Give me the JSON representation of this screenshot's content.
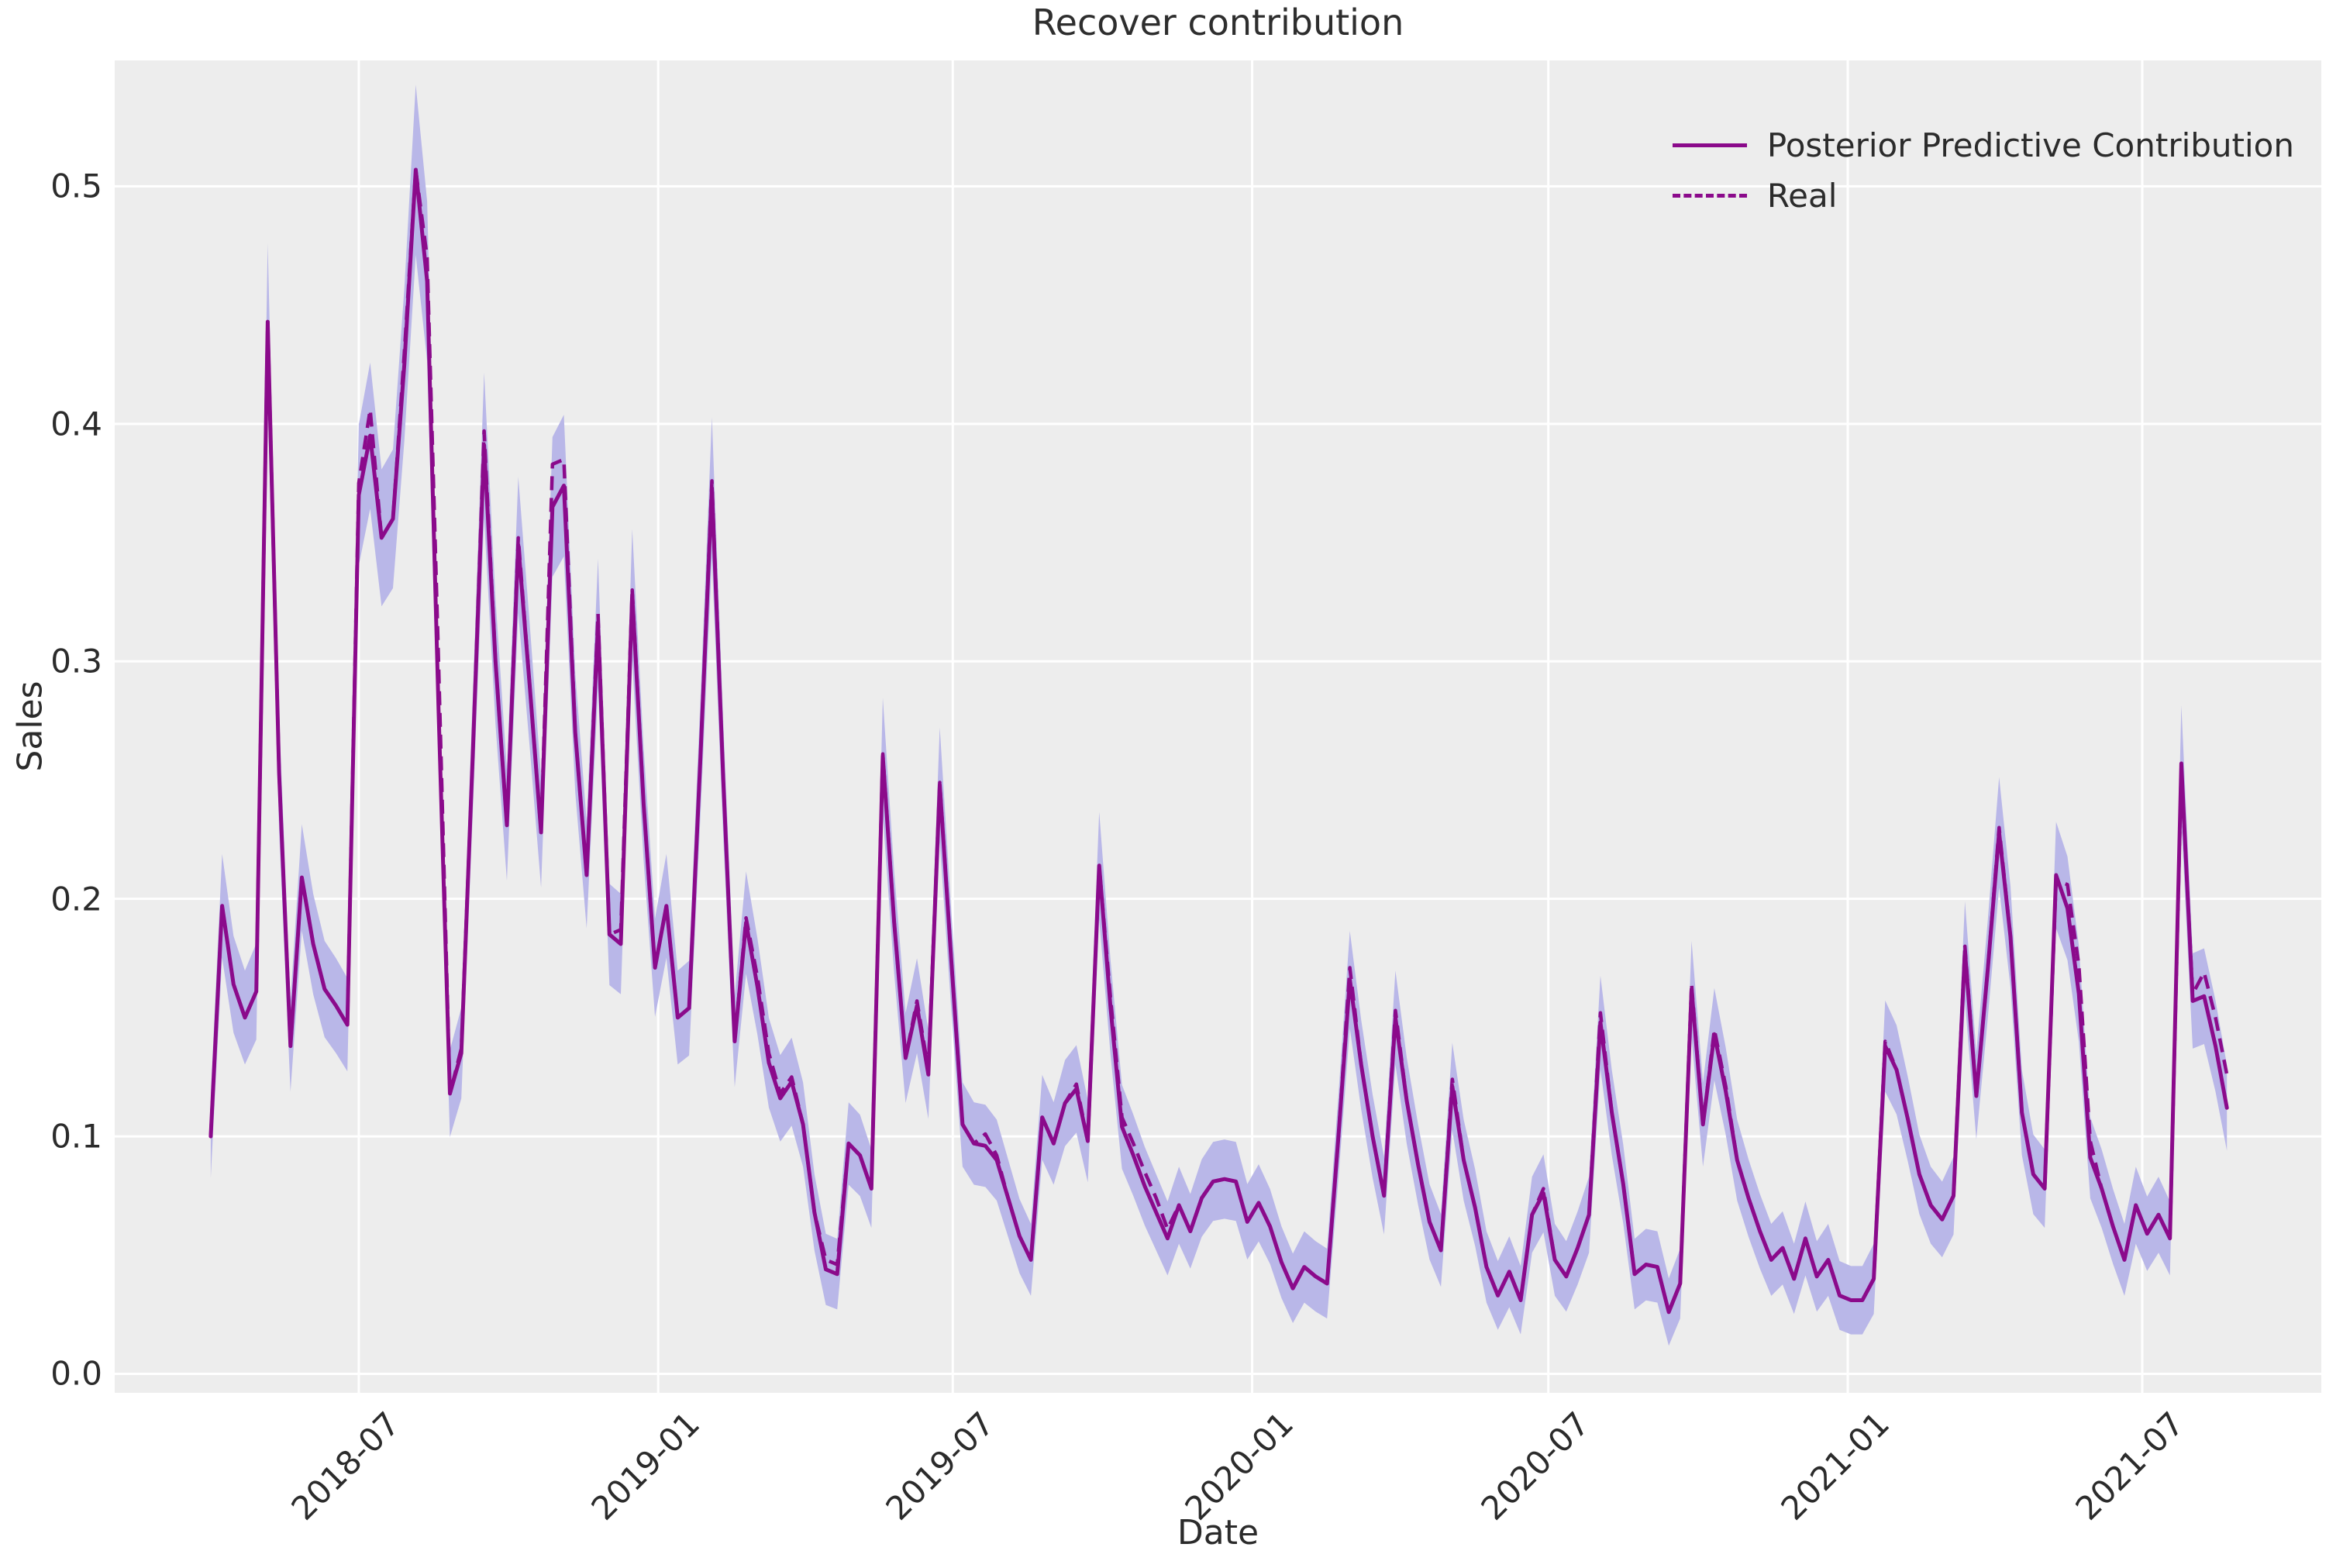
{
  "title": "Recover contribution",
  "axes": {
    "xlabel": "Date",
    "ylabel": "Sales"
  },
  "y_ticks": [
    {
      "label": "0.0",
      "value": 0.0
    },
    {
      "label": "0.1",
      "value": 0.1
    },
    {
      "label": "0.2",
      "value": 0.2
    },
    {
      "label": "0.3",
      "value": 0.3
    },
    {
      "label": "0.4",
      "value": 0.4
    },
    {
      "label": "0.5",
      "value": 0.5
    }
  ],
  "x_ticks": [
    {
      "label": "2018-07",
      "date": "2018-07-01"
    },
    {
      "label": "2019-01",
      "date": "2019-01-01"
    },
    {
      "label": "2019-07",
      "date": "2019-07-01"
    },
    {
      "label": "2020-01",
      "date": "2020-01-01"
    },
    {
      "label": "2020-07",
      "date": "2020-07-01"
    },
    {
      "label": "2021-01",
      "date": "2021-01-01"
    },
    {
      "label": "2021-07",
      "date": "2021-07-01"
    }
  ],
  "legend": {
    "items": [
      {
        "label": "Posterior Predictive Contribution",
        "line": "solid"
      },
      {
        "label": "Real",
        "line": "dashed"
      }
    ]
  },
  "colors": {
    "line": "#8b0a8b",
    "band": "#b9b7e8",
    "plot_bg": "#ededed",
    "grid": "#ffffff",
    "figure_bg": "#ffffff",
    "text": "#2b2b2b"
  },
  "chart_data": {
    "type": "line",
    "title": "Recover contribution",
    "xlabel": "Date",
    "ylabel": "Sales",
    "x_start_date": "2018-04-01",
    "x_step_days": 7,
    "n_points": 178,
    "xlim_dates": [
      "2018-02-01",
      "2021-10-19"
    ],
    "ylim": [
      -0.008,
      0.553
    ],
    "grid": "on",
    "legend_position": "upper right",
    "band": {
      "name": "posterior-hdi-band",
      "halfwidth_base": 0.013,
      "halfwidth_slope": 0.045
    },
    "series": [
      {
        "name": "Posterior Predictive Contribution",
        "style": "solid",
        "values": [
          0.1,
          0.197,
          0.164,
          0.15,
          0.161,
          0.443,
          0.253,
          0.138,
          0.209,
          0.181,
          0.162,
          0.155,
          0.147,
          0.37,
          0.395,
          0.352,
          0.36,
          0.425,
          0.507,
          0.46,
          0.28,
          0.118,
          0.135,
          0.26,
          0.391,
          0.3,
          0.231,
          0.349,
          0.29,
          0.228,
          0.365,
          0.374,
          0.27,
          0.21,
          0.316,
          0.185,
          0.181,
          0.328,
          0.24,
          0.171,
          0.197,
          0.15,
          0.154,
          0.26,
          0.373,
          0.25,
          0.14,
          0.19,
          0.163,
          0.131,
          0.116,
          0.123,
          0.105,
          0.068,
          0.044,
          0.042,
          0.097,
          0.092,
          0.078,
          0.26,
          0.19,
          0.133,
          0.155,
          0.126,
          0.248,
          0.175,
          0.105,
          0.097,
          0.096,
          0.09,
          0.074,
          0.058,
          0.048,
          0.108,
          0.097,
          0.114,
          0.12,
          0.098,
          0.214,
          0.154,
          0.104,
          0.092,
          0.079,
          0.068,
          0.057,
          0.071,
          0.06,
          0.074,
          0.081,
          0.082,
          0.081,
          0.064,
          0.072,
          0.062,
          0.047,
          0.036,
          0.045,
          0.041,
          0.038,
          0.1,
          0.166,
          0.13,
          0.1,
          0.075,
          0.15,
          0.115,
          0.088,
          0.064,
          0.052,
          0.121,
          0.09,
          0.07,
          0.045,
          0.033,
          0.043,
          0.031,
          0.067,
          0.076,
          0.048,
          0.041,
          0.053,
          0.067,
          0.148,
          0.11,
          0.08,
          0.042,
          0.046,
          0.045,
          0.026,
          0.038,
          0.162,
          0.105,
          0.143,
          0.119,
          0.09,
          0.074,
          0.06,
          0.048,
          0.053,
          0.04,
          0.057,
          0.041,
          0.048,
          0.033,
          0.031,
          0.031,
          0.04,
          0.138,
          0.128,
          0.107,
          0.084,
          0.071,
          0.065,
          0.075,
          0.178,
          0.117,
          0.17,
          0.228,
          0.184,
          0.11,
          0.084,
          0.078,
          0.21,
          0.196,
          0.16,
          0.091,
          0.078,
          0.062,
          0.048,
          0.071,
          0.059,
          0.067,
          0.057,
          0.257,
          0.157,
          0.159,
          0.138,
          0.112
        ]
      },
      {
        "name": "Real",
        "style": "dashed",
        "values": [
          0.1,
          0.197,
          0.164,
          0.15,
          0.161,
          0.443,
          0.253,
          0.138,
          0.209,
          0.181,
          0.162,
          0.155,
          0.147,
          0.375,
          0.406,
          0.352,
          0.36,
          0.43,
          0.507,
          0.47,
          0.3,
          0.118,
          0.137,
          0.26,
          0.397,
          0.3,
          0.231,
          0.352,
          0.29,
          0.228,
          0.383,
          0.385,
          0.27,
          0.21,
          0.32,
          0.185,
          0.187,
          0.33,
          0.24,
          0.171,
          0.197,
          0.15,
          0.154,
          0.26,
          0.376,
          0.25,
          0.14,
          0.192,
          0.167,
          0.135,
          0.118,
          0.125,
          0.105,
          0.068,
          0.048,
          0.046,
          0.097,
          0.092,
          0.078,
          0.261,
          0.19,
          0.133,
          0.157,
          0.128,
          0.249,
          0.175,
          0.105,
          0.097,
          0.101,
          0.092,
          0.074,
          0.058,
          0.048,
          0.108,
          0.097,
          0.114,
          0.122,
          0.098,
          0.214,
          0.158,
          0.108,
          0.097,
          0.085,
          0.074,
          0.061,
          0.071,
          0.06,
          0.074,
          0.081,
          0.082,
          0.081,
          0.064,
          0.072,
          0.062,
          0.047,
          0.036,
          0.045,
          0.041,
          0.038,
          0.1,
          0.171,
          0.13,
          0.1,
          0.075,
          0.153,
          0.115,
          0.088,
          0.064,
          0.052,
          0.124,
          0.09,
          0.07,
          0.045,
          0.033,
          0.043,
          0.031,
          0.067,
          0.078,
          0.048,
          0.041,
          0.053,
          0.067,
          0.152,
          0.11,
          0.08,
          0.042,
          0.046,
          0.045,
          0.026,
          0.038,
          0.164,
          0.105,
          0.145,
          0.121,
          0.09,
          0.074,
          0.06,
          0.048,
          0.053,
          0.04,
          0.057,
          0.041,
          0.048,
          0.033,
          0.031,
          0.031,
          0.04,
          0.14,
          0.128,
          0.107,
          0.084,
          0.071,
          0.065,
          0.075,
          0.18,
          0.117,
          0.17,
          0.23,
          0.184,
          0.11,
          0.084,
          0.078,
          0.208,
          0.206,
          0.172,
          0.098,
          0.078,
          0.062,
          0.048,
          0.071,
          0.059,
          0.067,
          0.057,
          0.254,
          0.16,
          0.169,
          0.15,
          0.126
        ]
      }
    ]
  }
}
